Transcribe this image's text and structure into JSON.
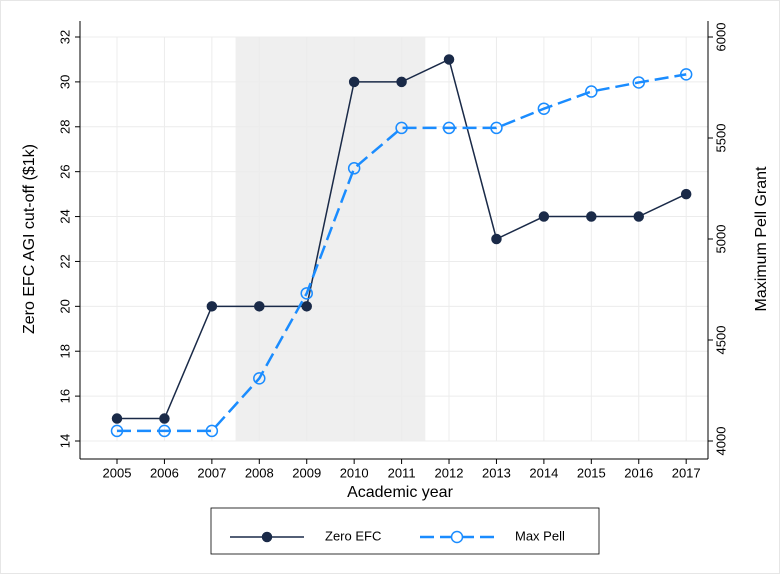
{
  "chart_data": {
    "type": "line",
    "x": [
      2005,
      2006,
      2007,
      2008,
      2009,
      2010,
      2011,
      2012,
      2013,
      2014,
      2015,
      2016,
      2017
    ],
    "xlabel": "Academic year",
    "ylabel": "Zero EFC AGI cut-off ($1k)",
    "y2label": "Maximum Pell Grant",
    "xlim": [
      2004.22,
      2017.46
    ],
    "xticks": [
      2005,
      2006,
      2007,
      2008,
      2009,
      2010,
      2011,
      2012,
      2013,
      2014,
      2015,
      2016,
      2017
    ],
    "ylim": [
      14,
      32
    ],
    "yticks": [
      14,
      16,
      18,
      20,
      22,
      24,
      26,
      28,
      30,
      32
    ],
    "y2lim": [
      4000,
      6000
    ],
    "y2ticks": [
      4000,
      4500,
      5000,
      5500,
      6000
    ],
    "shade": [
      2007.5,
      2011.5
    ],
    "grid": true,
    "legend": "bottom",
    "series": [
      {
        "name": "Zero EFC",
        "color": "#1a2a48",
        "values": [
          15,
          15,
          20,
          20,
          20,
          30,
          30,
          31,
          23,
          24,
          24,
          24,
          25
        ]
      },
      {
        "name": "Max Pell",
        "color": "#1a8cff",
        "axis": "y2",
        "dashed": true,
        "hollow": true,
        "values": [
          4050,
          4050,
          4050,
          4310,
          4731,
          5350,
          5550,
          5550,
          5550,
          5645,
          5730,
          5775,
          5815
        ]
      }
    ]
  }
}
